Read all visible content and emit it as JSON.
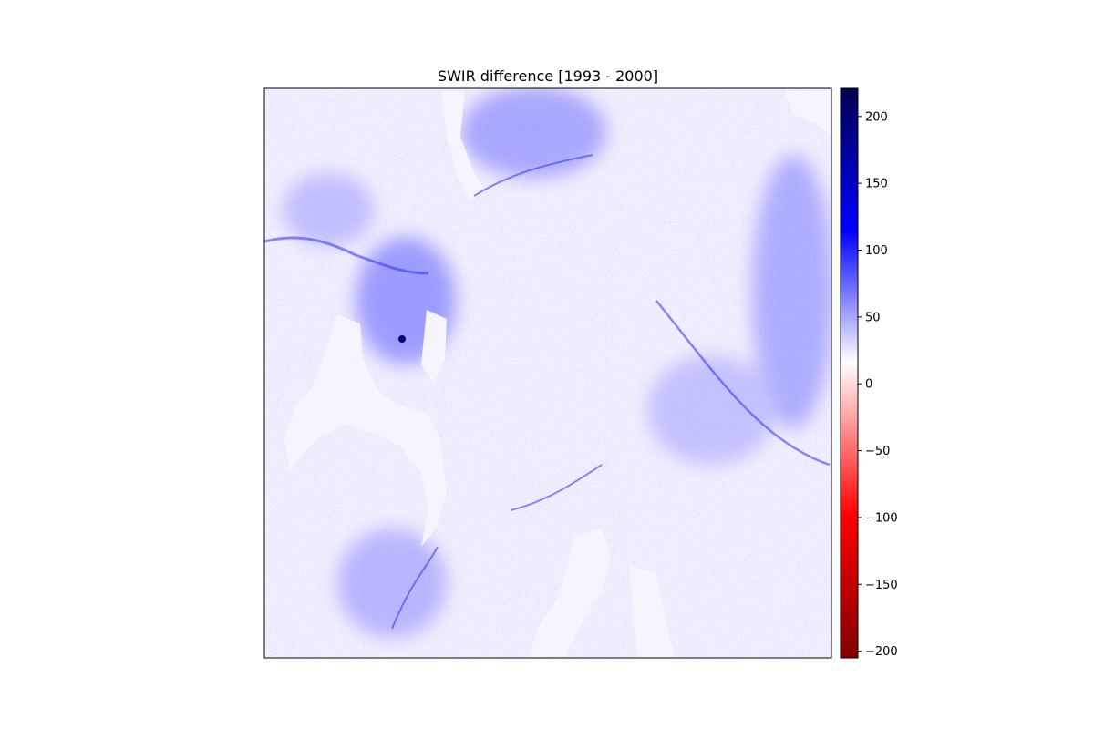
{
  "chart_data": {
    "type": "heatmap",
    "title": "SWIR difference [1993 - 2000]",
    "xlabel": "",
    "ylabel": "",
    "x_ticks": [],
    "y_ticks": [],
    "colormap": "seismic_r",
    "colorbar": {
      "range": [
        -205,
        221
      ],
      "ticks": [
        200,
        150,
        100,
        50,
        0,
        -50,
        -100,
        -150,
        -200
      ],
      "tick_labels": [
        "200",
        "150",
        "100",
        "50",
        "0",
        "−50",
        "−100",
        "−150",
        "−200"
      ],
      "colors": {
        "max": "#000050",
        "high": "#0000ff",
        "zero": "#ffffff",
        "low": "#ff0000",
        "min": "#800000"
      }
    },
    "image_description_colors": {
      "background": "#ffffff",
      "positive": "#3d3dff",
      "negative": "#ff6a6a",
      "water": "#f7f7ff"
    }
  }
}
